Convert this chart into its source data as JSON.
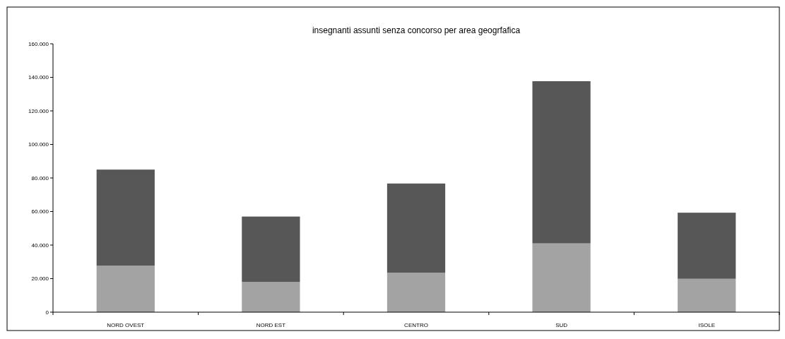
{
  "chart_data": {
    "type": "bar",
    "title": "insegnanti assunti senza concorso per area geogrfafica",
    "categories": [
      "NORD OVEST",
      "NORD EST",
      "CENTRO",
      "SUD",
      "ISOLE"
    ],
    "stacked": true,
    "series": [
      {
        "color": "#a3a3a3",
        "values": [
          27700,
          18000,
          23500,
          41000,
          19900
        ]
      },
      {
        "color": "#575757",
        "values": [
          57300,
          39000,
          53200,
          96700,
          39400
        ]
      }
    ],
    "ylim": [
      0,
      160000
    ],
    "yticks": [
      {
        "value": 0,
        "label": "0"
      },
      {
        "value": 20000,
        "label": "20.000"
      },
      {
        "value": 40000,
        "label": "40.000"
      },
      {
        "value": 60000,
        "label": "60.000"
      },
      {
        "value": 80000,
        "label": "80.000"
      },
      {
        "value": 100000,
        "label": "100.000"
      },
      {
        "value": 120000,
        "label": "120.000"
      },
      {
        "value": 140000,
        "label": "140.000"
      },
      {
        "value": 160000,
        "label": "160.000"
      }
    ],
    "grid": false
  }
}
